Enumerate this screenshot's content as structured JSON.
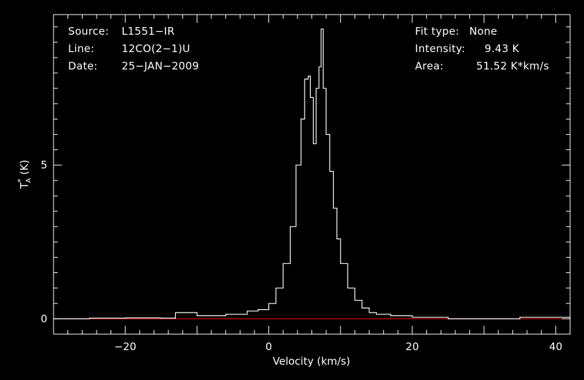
{
  "chart_data": {
    "type": "line",
    "title": "",
    "xlabel": "Velocity (km/s)",
    "ylabel": "T*A (K)",
    "xlim": [
      -30,
      42
    ],
    "ylim": [
      -0.5,
      9.9
    ],
    "xticks": [
      -20,
      0,
      20,
      40
    ],
    "xtick_labels": [
      "−20",
      "0",
      "20",
      "40"
    ],
    "yticks": [
      0,
      5
    ],
    "ytick_labels": [
      "0",
      "5"
    ],
    "grid": false,
    "baseline": 0,
    "series": [
      {
        "x": [
          -30,
          -25,
          -20,
          -15,
          -13,
          -10,
          -6,
          -3,
          -1.5,
          0,
          1,
          2,
          3,
          3.8,
          4.5,
          5,
          5.5,
          5.8,
          6.2,
          6.6,
          7,
          7.3,
          7.6,
          8,
          8.5,
          9,
          9.5,
          10,
          11,
          12,
          13,
          14,
          15,
          17,
          20,
          25,
          30,
          35,
          40,
          42
        ],
        "values": [
          0,
          0.02,
          0.03,
          0.02,
          0.2,
          0.1,
          0.15,
          0.25,
          0.3,
          0.5,
          1.0,
          1.8,
          3.0,
          5.0,
          6.5,
          7.8,
          7.9,
          7.2,
          5.7,
          7.5,
          8.2,
          9.43,
          7.5,
          6.0,
          4.8,
          3.6,
          2.6,
          1.8,
          1.0,
          0.6,
          0.35,
          0.2,
          0.15,
          0.1,
          0.05,
          0.0,
          0.0,
          0.05,
          0.05,
          0.0
        ]
      }
    ],
    "colors": {
      "background": "#000000",
      "axes": "#ffffff",
      "spectrum": "#ffffff",
      "baseline": "#ff0000"
    }
  },
  "info": {
    "source_label": "Source:",
    "source_value": "L1551−IR",
    "line_label": "Line:",
    "line_value": "12CO(2−1)U",
    "date_label": "Date:",
    "date_value": "25−JAN−2009",
    "fit_label": "Fit type:",
    "fit_value": "None",
    "intensity_label": "Intensity:",
    "intensity_value": "9.43 K",
    "area_label": "Area:",
    "area_value": "51.52 K*km/s"
  }
}
